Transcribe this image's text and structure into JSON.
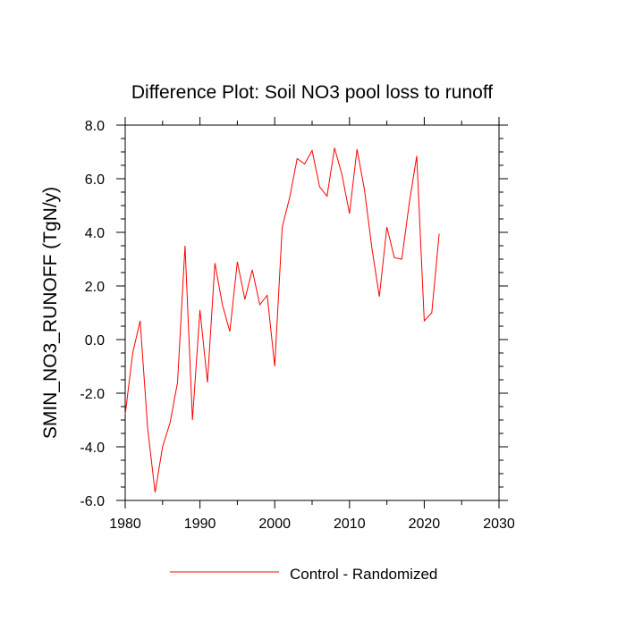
{
  "chart_data": {
    "type": "line",
    "title": "Difference Plot: Soil NO3 pool loss to runoff",
    "ylabel": "SMIN_NO3_RUNOFF  (TgN/y)",
    "xlabel": "",
    "xlim": [
      1980,
      2030
    ],
    "ylim": [
      -6.0,
      8.0
    ],
    "x_ticks": [
      1980,
      1990,
      2000,
      2010,
      2020,
      2030
    ],
    "x_tick_labels": [
      "1980",
      "1990",
      "2000",
      "2010",
      "2020",
      "2030"
    ],
    "y_ticks": [
      -6.0,
      -4.0,
      -2.0,
      0.0,
      2.0,
      4.0,
      6.0,
      8.0
    ],
    "y_tick_labels": [
      "-6.0",
      "-4.0",
      "-2.0",
      "0.0",
      "2.0",
      "4.0",
      "6.0",
      "8.0"
    ],
    "grid": false,
    "legend_position": "bottom-center",
    "series": [
      {
        "name": "Control - Randomized",
        "color": "#ff0000",
        "x": [
          1980,
          1981,
          1982,
          1983,
          1984,
          1985,
          1986,
          1987,
          1988,
          1989,
          1990,
          1991,
          1992,
          1993,
          1994,
          1995,
          1996,
          1997,
          1998,
          1999,
          2000,
          2001,
          2002,
          2003,
          2004,
          2005,
          2006,
          2007,
          2008,
          2009,
          2010,
          2011,
          2012,
          2013,
          2014,
          2015,
          2016,
          2017,
          2018,
          2019,
          2020,
          2021,
          2022
        ],
        "values": [
          -2.8,
          -0.5,
          0.7,
          -3.3,
          -5.7,
          -4.0,
          -3.1,
          -1.6,
          3.5,
          -3.0,
          1.1,
          -1.6,
          2.85,
          1.3,
          0.3,
          2.9,
          1.5,
          2.6,
          1.3,
          1.65,
          -1.0,
          4.2,
          5.3,
          6.75,
          6.55,
          7.05,
          5.7,
          5.35,
          7.15,
          6.15,
          4.7,
          7.1,
          5.6,
          3.4,
          1.6,
          4.2,
          3.05,
          3.0,
          5.1,
          6.85,
          0.7,
          1.0,
          3.95
        ]
      }
    ]
  }
}
